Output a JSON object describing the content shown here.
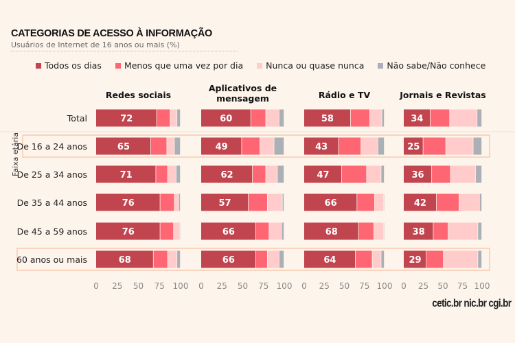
{
  "title": "CATEGORIAS DE ACESSO À INFORMAÇÃO",
  "subtitle": "Usuários de Internet de 16 anos ou mais (%)",
  "logo": "cetic.br  nic.br  cgi.br",
  "colors": {
    "background": "#fdf4ec",
    "highlight": "#fcc4a4"
  },
  "chart_data": {
    "type": "bar",
    "orientation": "horizontal-stacked",
    "row_group_label": "Faixa etária",
    "rows": [
      "Total",
      "De 16 a 24 anos",
      "De 25 a 34 anos",
      "De 35 a 44 anos",
      "De 45 a 59 anos",
      "60 anos ou mais"
    ],
    "highlighted_rows": [
      "De 16 a 24 anos",
      "60 anos ou mais"
    ],
    "series": [
      {
        "name": "Todos os dias",
        "color": "#c1454f"
      },
      {
        "name": "Menos que uma vez por dia",
        "color": "#ff6673"
      },
      {
        "name": "Nunca ou quase nunca",
        "color": "#ffcccb"
      },
      {
        "name": "Não sabe/Não conhece",
        "color": "#aab0b6"
      }
    ],
    "xlim": [
      0,
      100
    ],
    "xticks": [
      "0",
      "25",
      "50",
      "75",
      "100"
    ],
    "panels": [
      {
        "title": [
          "Redes sociais"
        ],
        "values": [
          [
            72,
            16,
            8,
            4
          ],
          [
            65,
            19,
            9,
            7
          ],
          [
            71,
            14,
            10,
            5
          ],
          [
            76,
            17,
            5,
            2
          ],
          [
            76,
            16,
            7,
            1
          ],
          [
            68,
            17,
            11,
            4
          ]
        ]
      },
      {
        "title": [
          "Aplicativos de",
          "mensagem"
        ],
        "values": [
          [
            60,
            18,
            16,
            6
          ],
          [
            49,
            22,
            17,
            12
          ],
          [
            62,
            16,
            14,
            8
          ],
          [
            57,
            23,
            18,
            2
          ],
          [
            66,
            16,
            15,
            3
          ],
          [
            66,
            14,
            14,
            6
          ]
        ]
      },
      {
        "title": [
          "Rádio e TV"
        ],
        "values": [
          [
            58,
            24,
            15,
            3
          ],
          [
            43,
            28,
            21,
            8
          ],
          [
            47,
            31,
            18,
            4
          ],
          [
            66,
            22,
            11,
            1
          ],
          [
            68,
            19,
            12,
            1
          ],
          [
            64,
            21,
            11,
            4
          ]
        ]
      },
      {
        "title": [
          "Jornais e Revistas"
        ],
        "values": [
          [
            34,
            25,
            35,
            6
          ],
          [
            25,
            29,
            35,
            11
          ],
          [
            36,
            24,
            32,
            8
          ],
          [
            42,
            29,
            26,
            3
          ],
          [
            38,
            19,
            38,
            5
          ],
          [
            29,
            22,
            44,
            5
          ]
        ]
      }
    ]
  }
}
